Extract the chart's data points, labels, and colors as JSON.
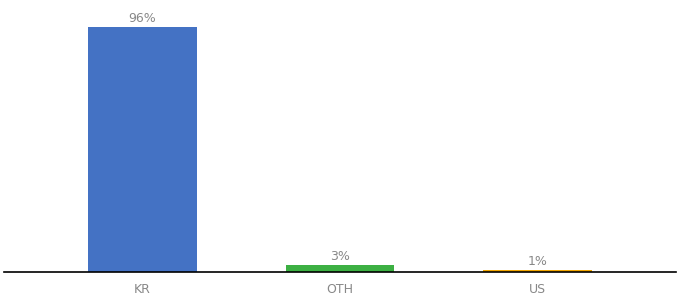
{
  "categories": [
    "KR",
    "OTH",
    "US"
  ],
  "values": [
    96,
    3,
    1
  ],
  "bar_colors": [
    "#4472c4",
    "#3cb043",
    "#f0a500"
  ],
  "labels": [
    "96%",
    "3%",
    "1%"
  ],
  "background_color": "#ffffff",
  "ylim": [
    0,
    105
  ],
  "bar_width": 0.55,
  "label_fontsize": 9,
  "tick_fontsize": 9
}
